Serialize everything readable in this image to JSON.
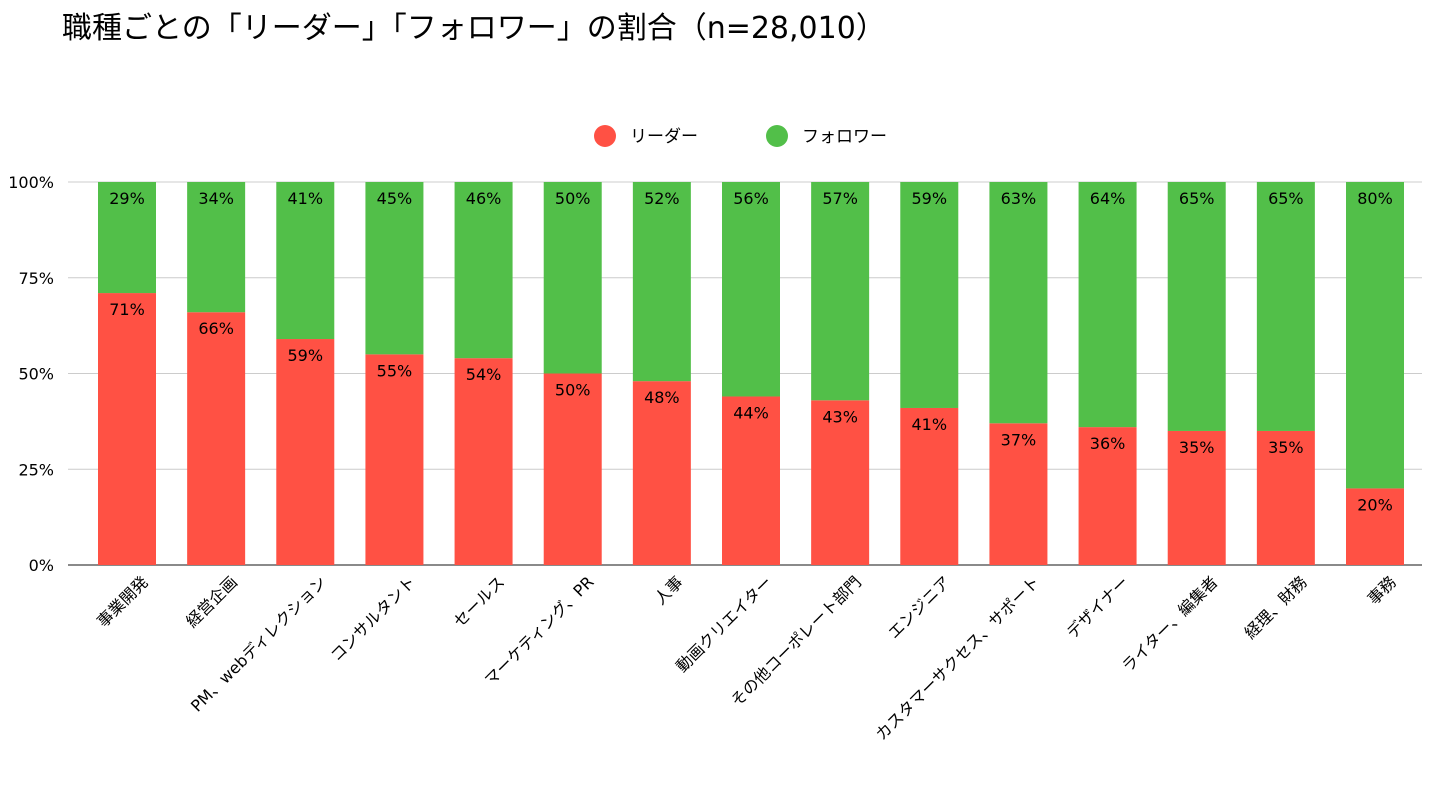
{
  "chart_data": {
    "type": "bar",
    "stacked": true,
    "title": "職種ごとの「リーダー」「フォロワー」の割合（n=28,010）",
    "xlabel": "",
    "ylabel": "",
    "ylim": [
      0,
      100
    ],
    "yticks": [
      "0%",
      "25%",
      "50%",
      "75%",
      "100%"
    ],
    "legend_position": "top-center",
    "grid": true,
    "categories": [
      "事業開発",
      "経営企画",
      "PM、webディレクション",
      "コンサルタント",
      "セールス",
      "マーケティング、PR",
      "人事",
      "動画クリエイター",
      "その他コーポレート部門",
      "エンジニア",
      "カスタマーサクセス、サポート",
      "デザイナー",
      "ライター、編集者",
      "経理、財務",
      "事務"
    ],
    "series": [
      {
        "name": "リーダー",
        "color": "#ff5144",
        "values": [
          71,
          66,
          59,
          55,
          54,
          50,
          48,
          44,
          43,
          41,
          37,
          36,
          35,
          35,
          20
        ],
        "labels": [
          "71%",
          "66%",
          "59%",
          "55%",
          "54%",
          "50%",
          "48%",
          "44%",
          "43%",
          "41%",
          "37%",
          "36%",
          "35%",
          "35%",
          "20%"
        ]
      },
      {
        "name": "フォロワー",
        "color": "#52bf49",
        "values": [
          29,
          34,
          41,
          45,
          46,
          50,
          52,
          56,
          57,
          59,
          63,
          64,
          65,
          65,
          80
        ],
        "labels": [
          "29%",
          "34%",
          "41%",
          "45%",
          "46%",
          "50%",
          "52%",
          "56%",
          "57%",
          "59%",
          "63%",
          "64%",
          "65%",
          "65%",
          "80%"
        ]
      }
    ]
  }
}
